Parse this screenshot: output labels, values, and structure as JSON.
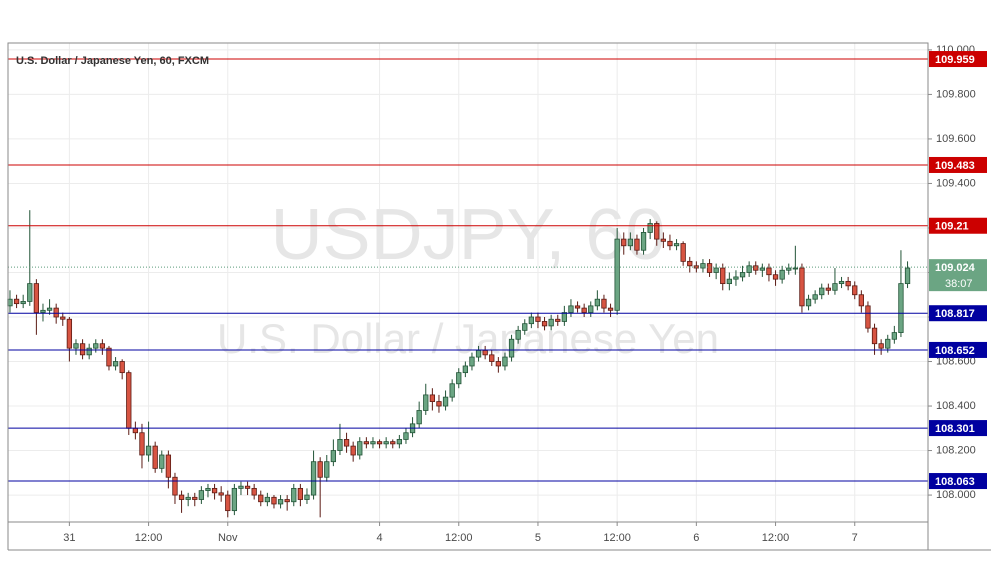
{
  "chart_data": {
    "type": "candlestick",
    "title": "U.S. Dollar / Japanese Yen, 60, FXCM",
    "watermark": "USDJPY, 60",
    "watermark_subtitle": "U.S. Dollar / Japanese Yen",
    "open": [
      108.85,
      108.88,
      108.86,
      108.87,
      108.95,
      108.82,
      108.83,
      108.84,
      108.8,
      108.79,
      108.66,
      108.68,
      108.63,
      108.66,
      108.68,
      108.66,
      108.58,
      108.6,
      108.55,
      108.3,
      108.28,
      108.18,
      108.22,
      108.12,
      108.18,
      108.08,
      108.0,
      107.98,
      107.99,
      107.98,
      108.02,
      108.03,
      108.01,
      108.0,
      107.93,
      108.03,
      108.04,
      108.03,
      108.0,
      107.97,
      107.99,
      107.96,
      107.98,
      107.97,
      108.03,
      107.98,
      108.0,
      108.15,
      108.08,
      108.15,
      108.2,
      108.25,
      108.22,
      108.18,
      108.24,
      108.23,
      108.24,
      108.23,
      108.24,
      108.23,
      108.25,
      108.28,
      108.32,
      108.38,
      108.45,
      108.42,
      108.4,
      108.44,
      108.5,
      108.55,
      108.58,
      108.62,
      108.65,
      108.63,
      108.6,
      108.58,
      108.62,
      108.7,
      108.74,
      108.77,
      108.8,
      108.78,
      108.76,
      108.79,
      108.78,
      108.82,
      108.85,
      108.84,
      108.82,
      108.85,
      108.88,
      108.84,
      108.83,
      109.15,
      109.12,
      109.15,
      109.1,
      109.18,
      109.22,
      109.15,
      109.14,
      109.12,
      109.13,
      109.05,
      109.03,
      109.02,
      109.04,
      109.0,
      109.02,
      108.95,
      108.97,
      108.98,
      109.0,
      109.03,
      109.01,
      109.02,
      108.99,
      108.97,
      109.01,
      109.02,
      109.02,
      108.85,
      108.88,
      108.9,
      108.93,
      108.92,
      108.95,
      108.96,
      108.94,
      108.9,
      108.85,
      108.75,
      108.68,
      108.66,
      108.7,
      108.73,
      108.95
    ],
    "high": [
      108.92,
      108.9,
      108.9,
      109.28,
      108.97,
      108.86,
      108.88,
      108.86,
      108.82,
      108.8,
      108.7,
      108.7,
      108.68,
      108.7,
      108.7,
      108.67,
      108.62,
      108.61,
      108.56,
      108.33,
      108.32,
      108.33,
      108.24,
      108.2,
      108.2,
      108.1,
      108.02,
      108.01,
      108.01,
      108.04,
      108.05,
      108.05,
      108.04,
      108.02,
      108.05,
      108.06,
      108.06,
      108.05,
      108.02,
      108.01,
      108.0,
      108.0,
      108.0,
      108.05,
      108.05,
      108.03,
      108.2,
      108.17,
      108.18,
      108.25,
      108.32,
      108.28,
      108.24,
      108.26,
      108.26,
      108.26,
      108.25,
      108.26,
      108.25,
      108.27,
      108.3,
      108.35,
      108.42,
      108.5,
      108.48,
      108.45,
      108.47,
      108.52,
      108.57,
      108.6,
      108.64,
      108.67,
      108.67,
      108.65,
      108.62,
      108.64,
      108.72,
      108.76,
      108.79,
      108.82,
      108.82,
      108.8,
      108.81,
      108.81,
      108.85,
      108.88,
      108.87,
      108.86,
      108.87,
      108.92,
      108.9,
      108.86,
      109.2,
      109.18,
      109.18,
      109.17,
      109.2,
      109.24,
      109.23,
      109.18,
      109.17,
      109.15,
      109.14,
      109.07,
      109.05,
      109.06,
      109.06,
      109.04,
      109.04,
      109.0,
      109.01,
      109.03,
      109.05,
      109.05,
      109.04,
      109.04,
      109.01,
      109.03,
      109.04,
      109.12,
      109.04,
      108.9,
      108.92,
      108.95,
      108.95,
      109.02,
      108.98,
      108.98,
      108.96,
      108.92,
      108.87,
      108.77,
      108.7,
      108.72,
      108.76,
      109.1,
      109.05
    ],
    "low": [
      108.82,
      108.84,
      108.84,
      108.85,
      108.72,
      108.78,
      108.81,
      108.77,
      108.76,
      108.6,
      108.63,
      108.61,
      108.61,
      108.64,
      108.63,
      108.56,
      108.56,
      108.52,
      108.27,
      108.25,
      108.12,
      108.15,
      108.1,
      108.1,
      108.03,
      107.96,
      107.92,
      107.95,
      107.95,
      107.96,
      107.99,
      107.98,
      107.97,
      107.9,
      107.91,
      108.0,
      108.0,
      107.98,
      107.95,
      107.95,
      107.94,
      107.94,
      107.93,
      107.95,
      107.95,
      107.96,
      107.98,
      107.9,
      108.06,
      108.13,
      108.18,
      108.19,
      108.15,
      108.16,
      108.21,
      108.21,
      108.21,
      108.21,
      108.21,
      108.21,
      108.23,
      108.26,
      108.3,
      108.36,
      108.38,
      108.37,
      108.38,
      108.42,
      108.48,
      108.53,
      108.56,
      108.6,
      108.61,
      108.58,
      108.55,
      108.56,
      108.6,
      108.68,
      108.72,
      108.75,
      108.75,
      108.74,
      108.74,
      108.76,
      108.76,
      108.8,
      108.82,
      108.8,
      108.8,
      108.83,
      108.82,
      108.8,
      108.81,
      109.08,
      109.1,
      109.08,
      109.08,
      109.15,
      109.12,
      109.11,
      109.1,
      109.1,
      109.03,
      109.0,
      109.0,
      109.0,
      108.98,
      108.97,
      108.92,
      108.92,
      108.94,
      108.96,
      108.98,
      108.99,
      108.98,
      108.96,
      108.94,
      108.95,
      108.99,
      108.99,
      108.82,
      108.83,
      108.86,
      108.88,
      108.9,
      108.9,
      108.93,
      108.92,
      108.88,
      108.82,
      108.73,
      108.63,
      108.63,
      108.64,
      108.68,
      108.71,
      108.93
    ],
    "close": [
      108.88,
      108.86,
      108.87,
      108.95,
      108.82,
      108.83,
      108.84,
      108.8,
      108.79,
      108.66,
      108.68,
      108.63,
      108.66,
      108.68,
      108.66,
      108.58,
      108.6,
      108.55,
      108.3,
      108.28,
      108.18,
      108.22,
      108.12,
      108.18,
      108.08,
      108.0,
      107.98,
      107.99,
      107.98,
      108.02,
      108.03,
      108.01,
      108.0,
      107.93,
      108.03,
      108.04,
      108.03,
      108.0,
      107.97,
      107.99,
      107.96,
      107.98,
      107.97,
      108.03,
      107.98,
      108.0,
      108.15,
      108.08,
      108.15,
      108.2,
      108.25,
      108.22,
      108.18,
      108.24,
      108.23,
      108.24,
      108.23,
      108.24,
      108.23,
      108.25,
      108.28,
      108.32,
      108.38,
      108.45,
      108.42,
      108.4,
      108.44,
      108.5,
      108.55,
      108.58,
      108.62,
      108.65,
      108.63,
      108.6,
      108.58,
      108.62,
      108.7,
      108.74,
      108.77,
      108.8,
      108.78,
      108.76,
      108.79,
      108.78,
      108.82,
      108.85,
      108.84,
      108.82,
      108.85,
      108.88,
      108.84,
      108.83,
      109.15,
      109.12,
      109.15,
      109.1,
      109.18,
      109.22,
      109.15,
      109.14,
      109.12,
      109.13,
      109.05,
      109.03,
      109.02,
      109.04,
      109.0,
      109.02,
      108.95,
      108.97,
      108.98,
      109.0,
      109.03,
      109.01,
      109.02,
      108.99,
      108.97,
      109.01,
      109.02,
      109.02,
      108.85,
      108.88,
      108.9,
      108.93,
      108.92,
      108.95,
      108.96,
      108.94,
      108.9,
      108.85,
      108.75,
      108.68,
      108.66,
      108.7,
      108.73,
      108.95,
      109.02
    ],
    "up_color": "#6ba583",
    "down_color": "#d75442",
    "xlim": [
      -0.3,
      139.1
    ],
    "xticks": [
      {
        "value": 9,
        "label": "31"
      },
      {
        "value": 21,
        "label": "12:00"
      },
      {
        "value": 33,
        "label": "Nov"
      },
      {
        "value": 56,
        "label": "4"
      },
      {
        "value": 68,
        "label": "12:00"
      },
      {
        "value": 80,
        "label": "5"
      },
      {
        "value": 92,
        "label": "12:00"
      },
      {
        "value": 104,
        "label": "6"
      },
      {
        "value": 116,
        "label": "12:00"
      },
      {
        "value": 128,
        "label": "7"
      }
    ],
    "ylim": [
      107.879,
      110.031
    ],
    "yticks": [
      {
        "value": 108,
        "label": "108.000"
      },
      {
        "value": 108.2,
        "label": "108.200"
      },
      {
        "value": 108.4,
        "label": "108.400"
      },
      {
        "value": 108.6,
        "label": "108.600"
      },
      {
        "value": 108.8,
        "label": "108.800"
      },
      {
        "value": 109,
        "label": "109.000"
      },
      {
        "value": 109.2,
        "label": "109.200"
      },
      {
        "value": 109.4,
        "label": "109.400"
      },
      {
        "value": 109.6,
        "label": "109.600"
      },
      {
        "value": 109.8,
        "label": "109.800"
      },
      {
        "value": 110,
        "label": "110.000"
      }
    ],
    "grid": true,
    "levels": [
      {
        "value": 109.959,
        "color": "#cc0000"
      },
      {
        "value": 109.483,
        "color": "#cc0000"
      },
      {
        "value": 109.21,
        "color": "#cc0000"
      },
      {
        "value": 108.817,
        "color": "#0000a0"
      },
      {
        "value": 108.652,
        "color": "#0000a0"
      },
      {
        "value": 108.301,
        "color": "#0000a0"
      },
      {
        "value": 108.063,
        "color": "#0000a0"
      }
    ],
    "last_price": 109.024,
    "countdown": "38:07"
  }
}
